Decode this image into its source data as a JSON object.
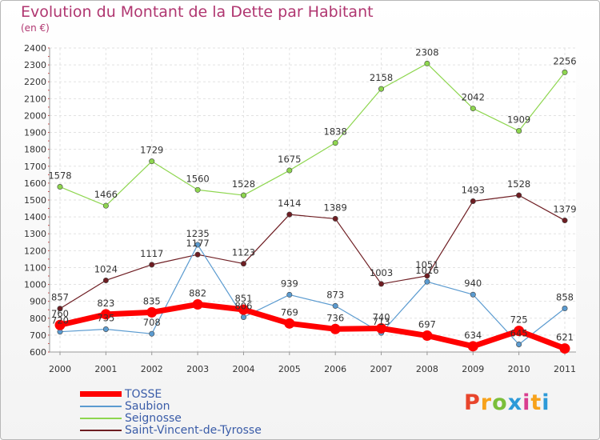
{
  "title": "Evolution du Montant de la Dette par Habitant",
  "subtitle": "(en €)",
  "logo": {
    "letters": [
      "P",
      "r",
      "o",
      "x",
      "i",
      "t",
      "i"
    ]
  },
  "chart_data": {
    "type": "line",
    "title": "Evolution du Montant de la Dette par Habitant",
    "subtitle": "(en €)",
    "x": [
      "2000",
      "2001",
      "2002",
      "2003",
      "2004",
      "2005",
      "2006",
      "2007",
      "2008",
      "2009",
      "2010",
      "2011"
    ],
    "ylim": [
      600,
      2400
    ],
    "yticks": [
      600,
      700,
      800,
      900,
      1000,
      1100,
      1200,
      1300,
      1400,
      1500,
      1600,
      1700,
      1800,
      1900,
      2000,
      2100,
      2200,
      2300,
      2400
    ],
    "grid": true,
    "legend_position": "bottom-left",
    "series": [
      {
        "name": "Saint-Vincent-de-Tyrosse",
        "color": "#6e1d22",
        "values": [
          857,
          1024,
          1117,
          1177,
          1123,
          1414,
          1389,
          1003,
          1051,
          1493,
          1528,
          1379
        ]
      },
      {
        "name": "Seignosse",
        "color": "#8ed64f",
        "values": [
          1578,
          1466,
          1729,
          1560,
          1528,
          1675,
          1838,
          2158,
          2308,
          2042,
          1909,
          2256
        ]
      },
      {
        "name": "Saubion",
        "color": "#5b9bd0",
        "values": [
          720,
          735,
          708,
          1235,
          806,
          939,
          873,
          713,
          1016,
          940,
          645,
          858
        ]
      },
      {
        "name": "TOSSE",
        "color": "#ff0000",
        "values": [
          760,
          823,
          835,
          882,
          851,
          769,
          736,
          740,
          697,
          634,
          725,
          621
        ]
      }
    ],
    "legend_order": [
      "TOSSE",
      "Saubion",
      "Seignosse",
      "Saint-Vincent-de-Tyrosse"
    ]
  }
}
